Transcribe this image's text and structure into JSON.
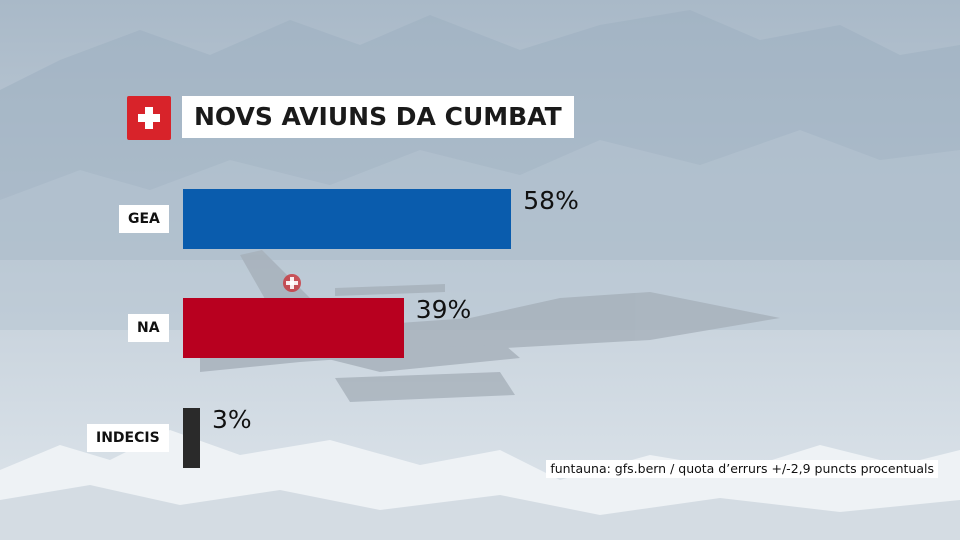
{
  "header": {
    "title": "NOVS AVIUNS DA CUMBAT",
    "flag_icon": "swiss-flag-icon"
  },
  "chart_data": {
    "type": "bar",
    "orientation": "horizontal",
    "categories": [
      "GEA",
      "NA",
      "INDECIS"
    ],
    "values": [
      58,
      39,
      3
    ],
    "value_labels": [
      "58%",
      "39%",
      "3%"
    ],
    "colors": [
      "#0a5cad",
      "#b8001f",
      "#2a2a2a"
    ],
    "xlim": [
      0,
      100
    ]
  },
  "footer": {
    "source": "funtauna: gfs.bern / quota d’errurs +/-2,9 puncts procentuals"
  },
  "background": {
    "description": ""
  }
}
